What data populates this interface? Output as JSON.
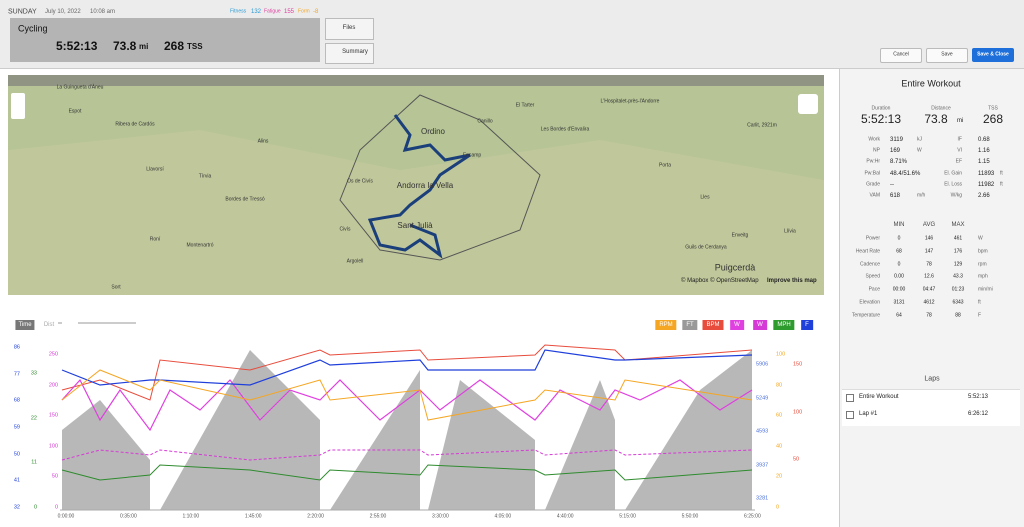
{
  "header": {
    "day": "SUNDAY",
    "date": "July 10, 2022",
    "time": "10:08 am",
    "fitness_label": "Fitness",
    "fitness": "132",
    "fatigue_label": "Fatigue",
    "fatigue": "155",
    "form_label": "Form",
    "form": "-8"
  },
  "summary": {
    "sport": "Cycling",
    "duration": "5:52:13",
    "distance": "73.8",
    "distance_unit": "mi",
    "tss": "268",
    "tss_unit": "TSS"
  },
  "buttons": {
    "files": "Files",
    "summary": "Summary",
    "cancel": "Cancel",
    "save": "Save",
    "save_close": "Save & Close"
  },
  "map": {
    "labels": [
      "La Guingueta d'Àneu",
      "Espot",
      "Ribera de Cardós",
      "Alins",
      "Tírvia",
      "Llavorsí",
      "Os de Civís",
      "Ordino",
      "Canillo",
      "Encamp",
      "Andorra la Vella",
      "Sant Julià",
      "Civís",
      "Argolell",
      "Bordes de Tressó",
      "Montenartró",
      "Roní",
      "Sort",
      "Lles",
      "Puigcerdà",
      "Llívia",
      "Enveitg",
      "Guils de Cerdanya",
      "Carlit, 2921m",
      "L'Hospitalet-près-l'Andorre",
      "El Tarter",
      "Les Bordes d'Envalira",
      "Porta"
    ],
    "attribution": "© Mapbox © OpenStreetMap",
    "improve": "Improve this map"
  },
  "chart_controls": {
    "time": "Time",
    "dist": "Dist",
    "legend": [
      "RPM",
      "FT",
      "BPM",
      "W",
      "W",
      "MPH",
      "F"
    ]
  },
  "axes": {
    "left_blue": [
      "86",
      "77",
      "68",
      "59",
      "50",
      "41",
      "32"
    ],
    "left_green": [
      "33",
      "22",
      "11",
      "0"
    ],
    "left_magenta": [
      "250",
      "200",
      "150",
      "100",
      "50",
      "0"
    ],
    "right_blue": [
      "5906",
      "5249",
      "4593",
      "3937",
      "3281"
    ],
    "right_orange": [
      "100",
      "80",
      "60",
      "40",
      "20",
      "0"
    ],
    "right_red": [
      "150",
      "100",
      "50"
    ],
    "x_ticks": [
      "0:00:00",
      "0:35:00",
      "1:10:00",
      "1:45:00",
      "2:20:00",
      "2:55:00",
      "3:30:00",
      "4:05:00",
      "4:40:00",
      "5:15:00",
      "5:50:00",
      "6:25:00"
    ]
  },
  "panel": {
    "title": "Entire Workout",
    "totals": [
      {
        "label": "Duration",
        "value": "5:52:13",
        "unit": ""
      },
      {
        "label": "Distance",
        "value": "73.8",
        "unit": "mi"
      },
      {
        "label": "TSS",
        "value": "268",
        "unit": ""
      }
    ],
    "stats": [
      [
        "Work",
        "3119",
        "kJ",
        "IF",
        "0.68",
        ""
      ],
      [
        "NP",
        "169",
        "W",
        "VI",
        "1.16",
        ""
      ],
      [
        "Pw:Hr",
        "8.71%",
        "",
        "EF",
        "1.15",
        ""
      ],
      [
        "Pw:Bal",
        "48.4/51.6%",
        "",
        "El. Gain",
        "11893",
        "ft"
      ],
      [
        "Grade",
        "--",
        "",
        "El. Loss",
        "11982",
        "ft"
      ],
      [
        "VAM",
        "618",
        "m/h",
        "W/kg",
        "2.66",
        ""
      ]
    ],
    "minmax_headers": [
      "MIN",
      "AVG",
      "MAX"
    ],
    "minmax": [
      [
        "Power",
        "0",
        "146",
        "461",
        "W"
      ],
      [
        "Heart Rate",
        "68",
        "147",
        "176",
        "bpm"
      ],
      [
        "Cadence",
        "0",
        "78",
        "129",
        "rpm"
      ],
      [
        "Speed",
        "0.00",
        "12.6",
        "43.3",
        "mph"
      ],
      [
        "Pace",
        "00:00",
        "04:47",
        "01:23",
        "min/mi"
      ],
      [
        "Elevation",
        "3131",
        "4612",
        "6343",
        "ft"
      ],
      [
        "Temperature",
        "64",
        "78",
        "88",
        "F"
      ]
    ],
    "laps_title": "Laps",
    "laps": [
      {
        "name": "Entire Workout",
        "time": "5:52:13"
      },
      {
        "name": "Lap #1",
        "time": "6:26:12"
      }
    ]
  }
}
